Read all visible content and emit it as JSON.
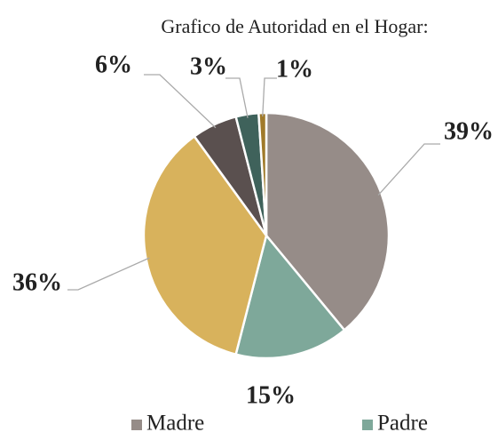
{
  "chart_data": {
    "type": "pie",
    "title": "Grafico de Autoridad en el Hogar:",
    "categories": [
      "Madre",
      "Padre",
      null,
      null,
      null,
      null
    ],
    "values": [
      39,
      15,
      36,
      6,
      3,
      1
    ],
    "value_labels": [
      "39%",
      "15%",
      "36%",
      "6%",
      "3%",
      "1%"
    ],
    "colors": [
      "#968c88",
      "#7ea89a",
      "#d8b25c",
      "#5a504f",
      "#3f625b",
      "#a07a2a"
    ],
    "legend": "bottom"
  }
}
